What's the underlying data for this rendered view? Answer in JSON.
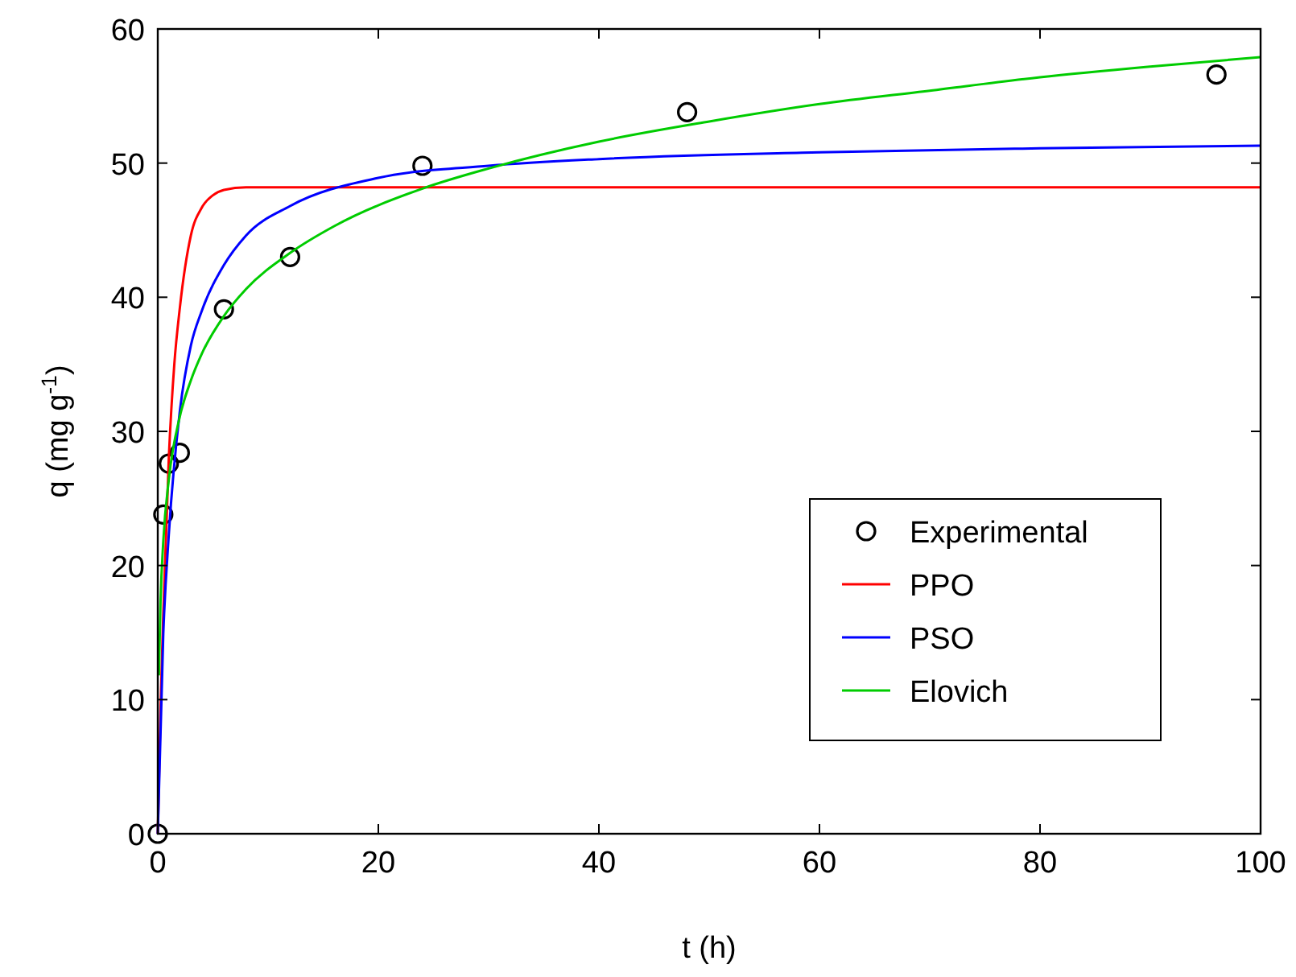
{
  "chart_data": {
    "type": "line",
    "xlabel": "t (h)",
    "ylabel": "q (mg g$^{-1}$)",
    "xlim": [
      0,
      100
    ],
    "ylim": [
      0,
      60
    ],
    "xticks": [
      0,
      20,
      40,
      60,
      80,
      100
    ],
    "yticks": [
      0,
      10,
      20,
      30,
      40,
      50,
      60
    ],
    "grid": false,
    "legend": "right",
    "series": [
      {
        "name": "Experimental",
        "type": "scatter",
        "marker": "circle",
        "color": "#000000",
        "x": [
          0,
          0.5,
          1,
          2,
          6,
          12,
          24,
          48,
          96
        ],
        "values": [
          0,
          23.8,
          27.6,
          28.4,
          39.1,
          43,
          49.8,
          53.8,
          56.6
        ]
      },
      {
        "name": "PPO",
        "color": "#ff0000",
        "x": [
          0,
          0.25,
          0.5,
          1,
          1.5,
          2,
          3,
          4,
          5,
          6,
          8,
          20,
          50,
          100
        ],
        "values": [
          0,
          9.3,
          16.4,
          28,
          35,
          39.2,
          44.6,
          46.7,
          47.6,
          48,
          48.2,
          48.2,
          48.2,
          48.2
        ]
      },
      {
        "name": "PSO",
        "color": "#0000ff",
        "x": [
          0,
          0.5,
          1,
          2,
          3,
          4,
          6,
          8,
          12,
          20,
          30,
          40,
          60,
          80,
          100
        ],
        "values": [
          0,
          14.9,
          22.3,
          31.5,
          36.4,
          39,
          42.4,
          44.6,
          46.8,
          48.9,
          49.8,
          50.3,
          50.8,
          51.1,
          51.3
        ]
      },
      {
        "name": "Elovich",
        "color": "#00cc00",
        "x": [
          0.1,
          0.25,
          0.5,
          1,
          2,
          3,
          4,
          6,
          8,
          12,
          16,
          24,
          30,
          40,
          50,
          60,
          70,
          80,
          90,
          100
        ],
        "values": [
          11.8,
          17.3,
          21.8,
          26.4,
          31.1,
          33.8,
          35.8,
          38.6,
          40.6,
          43.3,
          45.3,
          48.1,
          49.6,
          51.6,
          53.1,
          54.4,
          55.4,
          56.4,
          57.2,
          57.9
        ]
      }
    ]
  }
}
